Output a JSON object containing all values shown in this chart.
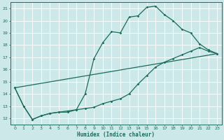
{
  "xlabel": "Humidex (Indice chaleur)",
  "bg_color": "#cce8e8",
  "line_color": "#1a6b5a",
  "grid_color": "#b0d8d8",
  "xlim": [
    -0.5,
    23.5
  ],
  "ylim": [
    11.5,
    21.5
  ],
  "xticks": [
    0,
    1,
    2,
    3,
    4,
    5,
    6,
    7,
    8,
    9,
    10,
    11,
    12,
    13,
    14,
    15,
    16,
    17,
    18,
    19,
    20,
    21,
    22,
    23
  ],
  "yticks": [
    12,
    13,
    14,
    15,
    16,
    17,
    18,
    19,
    20,
    21
  ],
  "series_main": [
    [
      0,
      14.5
    ],
    [
      1,
      13.0
    ],
    [
      2,
      11.9
    ],
    [
      3,
      12.2
    ],
    [
      4,
      12.4
    ],
    [
      5,
      12.5
    ],
    [
      6,
      12.5
    ],
    [
      7,
      12.7
    ],
    [
      8,
      14.0
    ],
    [
      9,
      16.9
    ],
    [
      10,
      18.2
    ],
    [
      11,
      19.1
    ],
    [
      12,
      19.0
    ],
    [
      13,
      20.3
    ],
    [
      14,
      20.4
    ],
    [
      15,
      21.1
    ],
    [
      16,
      21.2
    ],
    [
      17,
      20.5
    ],
    [
      18,
      20.0
    ],
    [
      19,
      19.3
    ],
    [
      20,
      19.0
    ],
    [
      21,
      18.1
    ],
    [
      22,
      17.6
    ],
    [
      23,
      17.3
    ]
  ],
  "series_straight": [
    [
      0,
      14.5
    ],
    [
      23,
      17.3
    ]
  ],
  "series_lower": [
    [
      0,
      14.5
    ],
    [
      1,
      13.0
    ],
    [
      2,
      11.9
    ],
    [
      3,
      12.2
    ],
    [
      4,
      12.4
    ],
    [
      5,
      12.5
    ],
    [
      6,
      12.6
    ],
    [
      7,
      12.7
    ],
    [
      8,
      12.8
    ],
    [
      9,
      12.9
    ],
    [
      10,
      13.2
    ],
    [
      11,
      13.4
    ],
    [
      12,
      13.6
    ],
    [
      13,
      14.0
    ],
    [
      14,
      14.8
    ],
    [
      15,
      15.5
    ],
    [
      16,
      16.2
    ],
    [
      17,
      16.6
    ],
    [
      18,
      16.9
    ],
    [
      19,
      17.2
    ],
    [
      20,
      17.5
    ],
    [
      21,
      17.8
    ],
    [
      22,
      17.5
    ],
    [
      23,
      17.3
    ]
  ]
}
